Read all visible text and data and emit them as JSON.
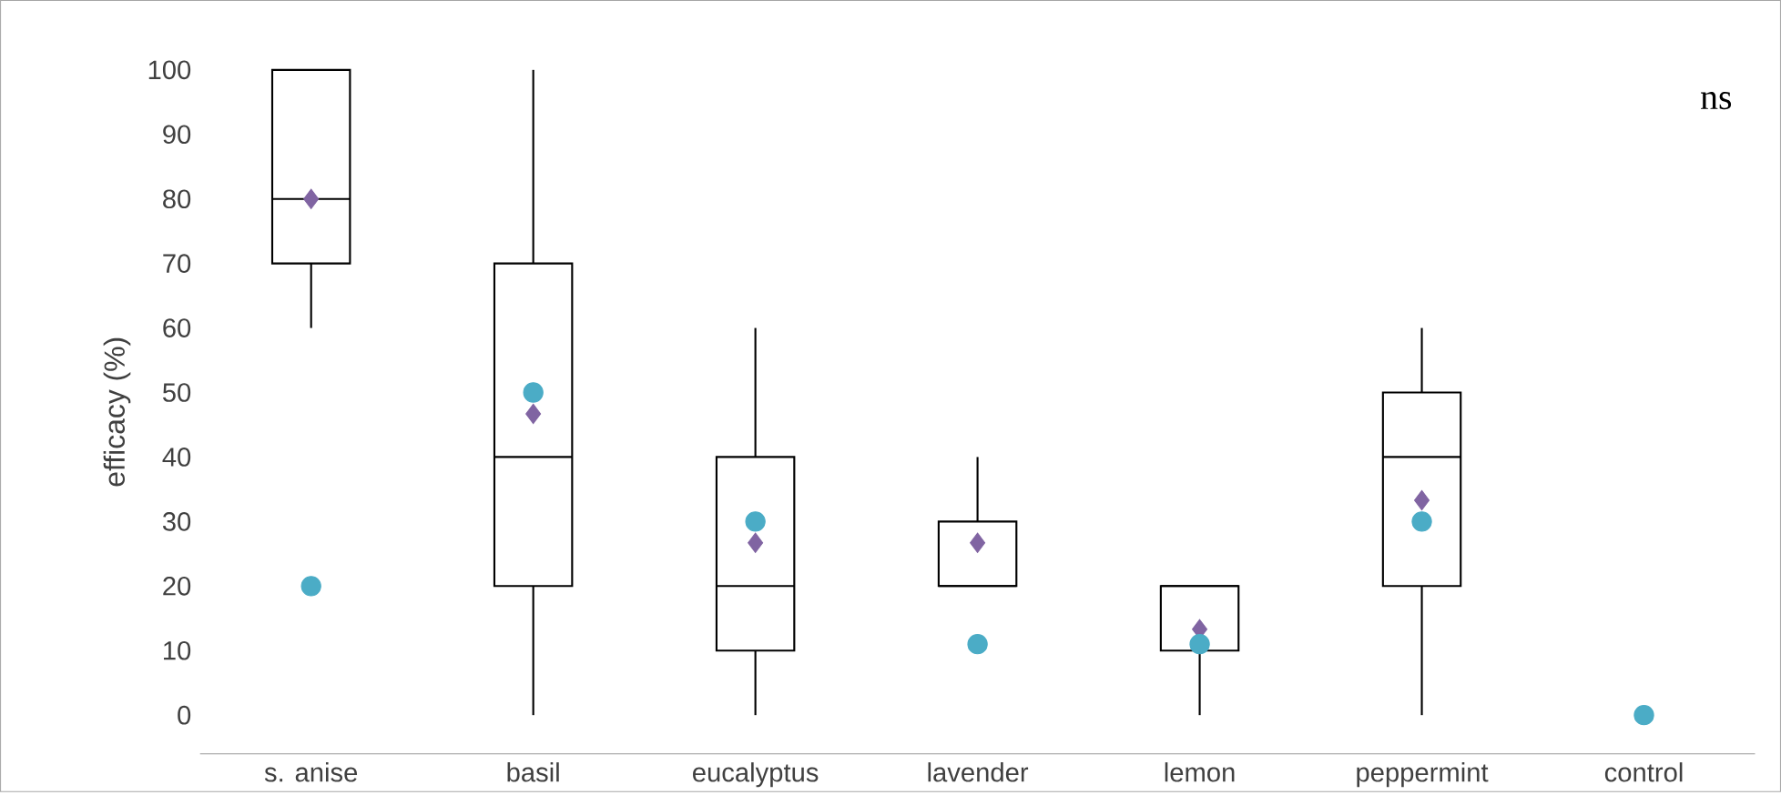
{
  "chart_data": {
    "type": "box",
    "ylabel": "efficacy (%)",
    "annotations": [
      "ns"
    ],
    "categories": [
      "s. anise",
      "basil",
      "eucalyptus",
      "lavender",
      "lemon",
      "peppermint",
      "control"
    ],
    "ylim": [
      -6,
      100
    ],
    "yticks": [
      0,
      10,
      20,
      30,
      40,
      50,
      60,
      70,
      80,
      90,
      100
    ],
    "grid": false,
    "series": [
      {
        "type": "box",
        "color": "#000000",
        "boxes": [
          {
            "low": 60,
            "q1": 70,
            "median": 80,
            "q3": 100,
            "high": 100,
            "mean": 80
          },
          {
            "low": 0,
            "q1": 20,
            "median": 40,
            "q3": 70,
            "high": 100,
            "mean": 46.7
          },
          {
            "low": 0,
            "q1": 10,
            "median": 20,
            "q3": 40,
            "high": 60,
            "mean": 26.7
          },
          {
            "low": 20,
            "q1": 20,
            "median": 20,
            "q3": 30,
            "high": 40,
            "mean": 26.7
          },
          {
            "low": 0,
            "q1": 10,
            "median": 20,
            "q3": 20,
            "high": 20,
            "mean": 13.3
          },
          {
            "low": 0,
            "q1": 20,
            "median": 40,
            "q3": 50,
            "high": 60,
            "mean": 33.3
          },
          null
        ]
      },
      {
        "type": "scatter",
        "color": "#4bacc6",
        "x": [
          "s. anise",
          "basil",
          "eucalyptus",
          "lavender",
          "lemon",
          "peppermint",
          "control"
        ],
        "values": [
          20,
          50,
          30,
          11,
          11,
          30,
          0
        ]
      }
    ]
  }
}
